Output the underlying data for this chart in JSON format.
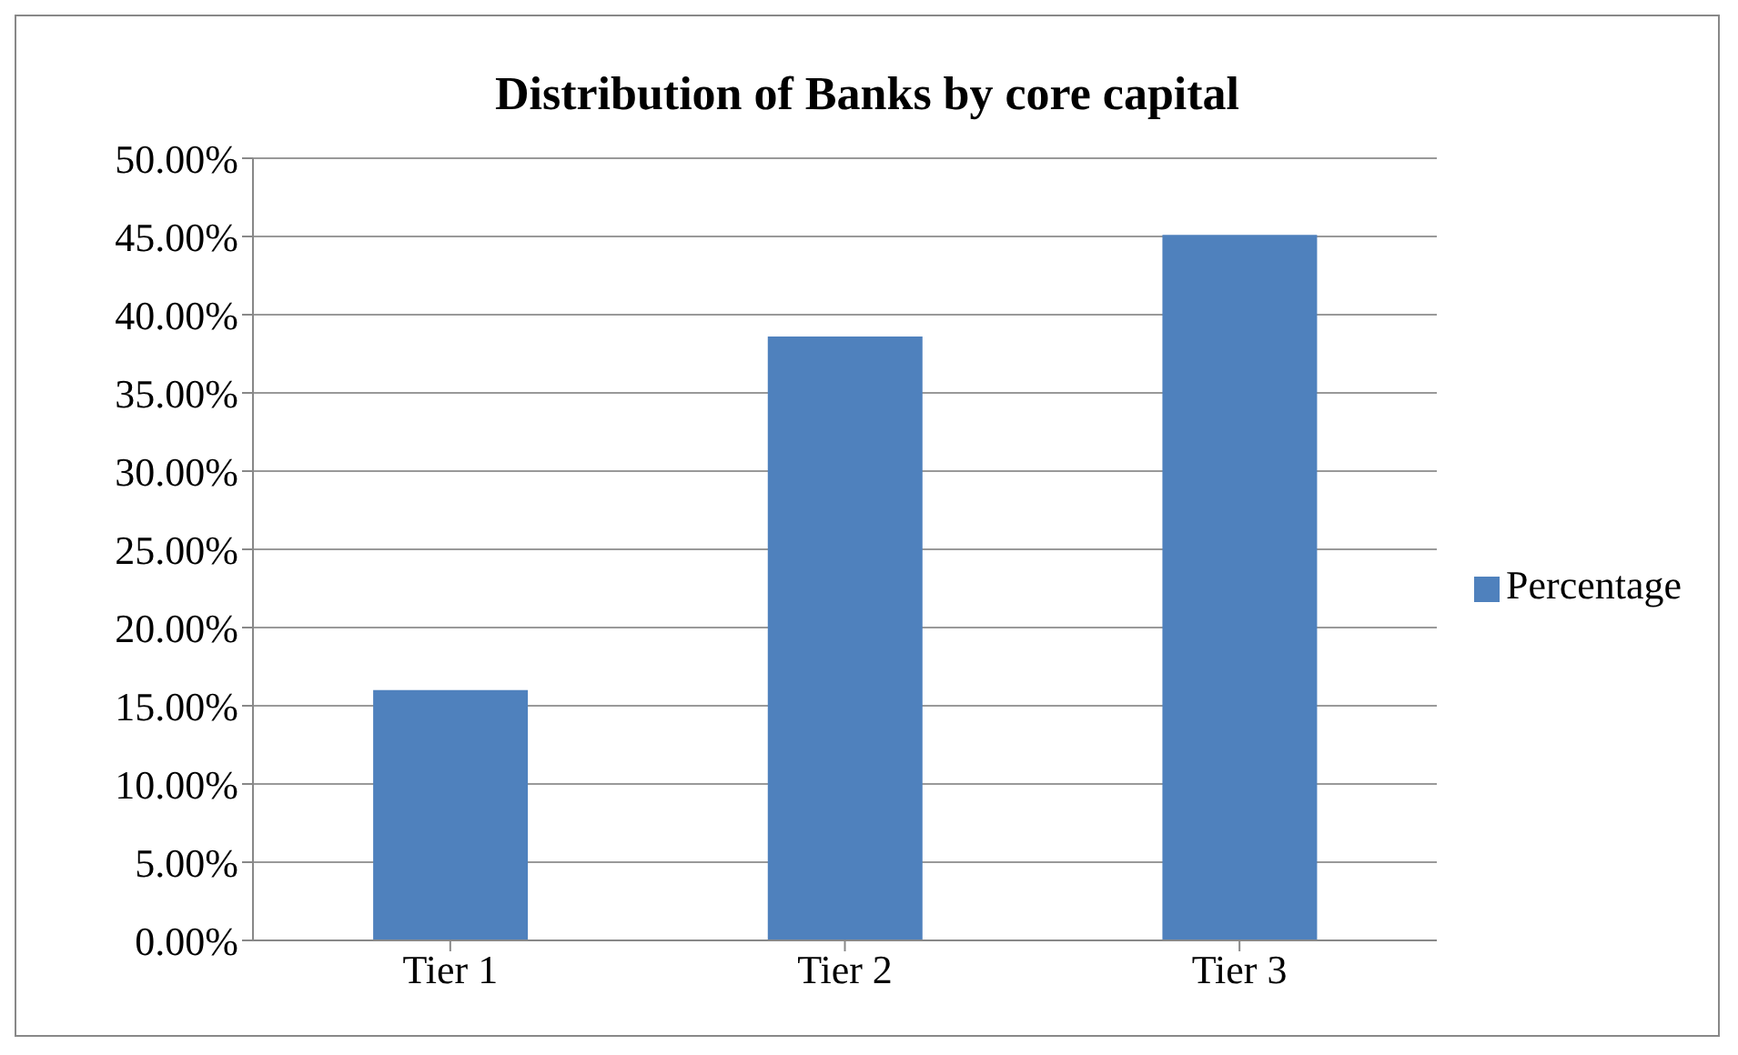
{
  "chart_data": {
    "type": "bar",
    "title": "Distribution of Banks by core capital",
    "categories": [
      "Tier 1",
      "Tier 2",
      "Tier 3"
    ],
    "series": [
      {
        "name": "Percentage",
        "color": "#4f81bd",
        "values": [
          16,
          38.6,
          45.1
        ]
      }
    ],
    "ylim": [
      0,
      50
    ],
    "yticks": [
      {
        "value": 0,
        "label": "0.00%"
      },
      {
        "value": 5,
        "label": "5.00%"
      },
      {
        "value": 10,
        "label": "10.00%"
      },
      {
        "value": 15,
        "label": "15.00%"
      },
      {
        "value": 20,
        "label": "20.00%"
      },
      {
        "value": 25,
        "label": "25.00%"
      },
      {
        "value": 30,
        "label": "30.00%"
      },
      {
        "value": 35,
        "label": "35.00%"
      },
      {
        "value": 40,
        "label": "40.00%"
      },
      {
        "value": 45,
        "label": "45.00%"
      },
      {
        "value": 50,
        "label": "50.00%"
      }
    ],
    "grid": "y",
    "legend": "right"
  }
}
